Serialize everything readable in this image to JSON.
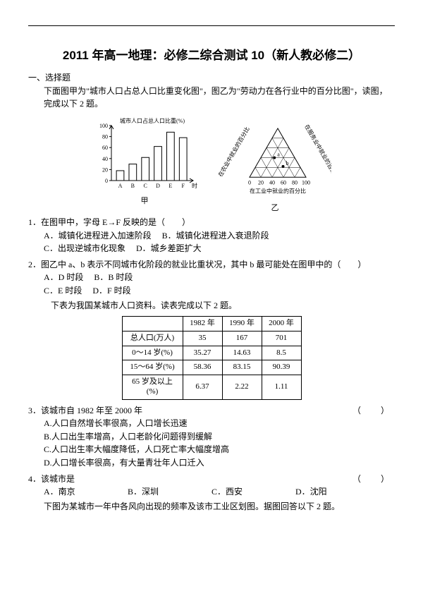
{
  "document_title": "2011 年高一地理：必修二综合测试 10（新人教必修二）",
  "section_heading": "一、选择题",
  "intro": "下面图甲为\"城市人口占总人口比重变化图\"，图乙为\"劳动力在各行业中的百分比图\"，读图，完成以下 2 题。",
  "chart_jia": {
    "type": "bar",
    "title": "城市人口占总人口比重(%)",
    "categories": [
      "A",
      "B",
      "C",
      "D",
      "E",
      "F"
    ],
    "x_axis_label": "时间",
    "values": [
      18,
      30,
      42,
      62,
      88,
      78
    ],
    "yticks": [
      0,
      20,
      40,
      60,
      80,
      100
    ],
    "ylim": [
      0,
      100
    ],
    "bar_fill": "#ffffff",
    "bar_stroke": "#000000",
    "axis_color": "#000000",
    "bg": "#ffffff",
    "font_size": 8,
    "caption": "甲"
  },
  "chart_yi": {
    "type": "ternary",
    "axis_labels": {
      "left": "在农业中就业的百分比",
      "right": "在服务业中就业的百分比",
      "bottom": "在工业中就业的百分比"
    },
    "ticks": [
      0,
      20,
      40,
      60,
      80,
      100
    ],
    "points": [
      {
        "label": "a",
        "u": 0.4,
        "v": 0.4
      },
      {
        "label": "b",
        "u": 0.62,
        "v": 0.22
      }
    ],
    "stroke": "#000000",
    "bg": "#ffffff",
    "font_size": 8,
    "caption": "乙"
  },
  "q1": {
    "stem": "1．在图甲中，字母 E→F 反映的是（　　）",
    "optA": "A．城镇化进程进入加速阶段",
    "optB": "B．城镇化进程进入衰退阶段",
    "optC": "C．出现逆城市化现象",
    "optD": "D．城乡差距扩大"
  },
  "q2": {
    "stem": "2．图乙中 a、b 表示不同城市化阶段的就业比重状况，其中 b 最可能处在图甲中的（　　）",
    "optA": "A．D 时段",
    "optB": "B．B 时段",
    "optC": "C．E 时段",
    "optD": "D．F 时段",
    "sub": "下表为我国某城市人口资料。读表完成以下 2 题。"
  },
  "table": {
    "columns": [
      "",
      "1982 年",
      "1990 年",
      "2000 年"
    ],
    "rows": [
      [
        "总人口(万人)",
        "35",
        "167",
        "701"
      ],
      [
        "0～14 岁(%)",
        "35.27",
        "14.63",
        "8.5"
      ],
      [
        "15～64 岁(%)",
        "58.36",
        "83.15",
        "90.39"
      ],
      [
        "65 岁及以上(%)",
        "6.37",
        "2.22",
        "1.11"
      ]
    ],
    "border_color": "#000000",
    "cell_font_size": 11
  },
  "q3": {
    "stem_left": "3．该城市自 1982 年至 2000 年",
    "paren": "（　）",
    "optA": "A.人口自然增长率很高，人口增长迅速",
    "optB": "B.人口出生率增高，人口老龄化问题得到缓解",
    "optC": "C.人口出生率大幅度降低，人口死亡率大幅度增高",
    "optD": "D.人口增长率很高，有大量青壮年人口迁入"
  },
  "q4": {
    "stem_left": "4．该城市是",
    "paren": "（　）",
    "optA": "A．南京",
    "optB": "B．深圳",
    "optC": "C．西安",
    "optD": "D．沈阳",
    "note": "下图为某城市一年中各风向出现的频率及该市工业区划图。据图回答以下 2 题。"
  }
}
